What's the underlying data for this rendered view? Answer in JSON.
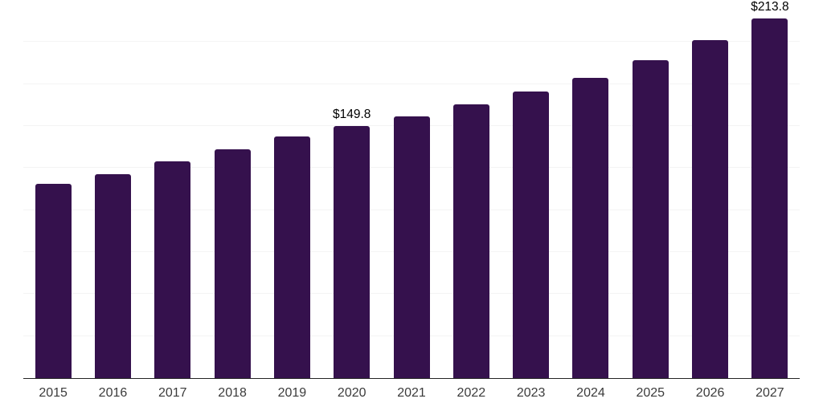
{
  "chart_data": {
    "type": "bar",
    "title": "",
    "xlabel": "",
    "ylabel": "",
    "categories": [
      "2015",
      "2016",
      "2017",
      "2018",
      "2019",
      "2020",
      "2021",
      "2022",
      "2023",
      "2024",
      "2025",
      "2026",
      "2027"
    ],
    "values": [
      115.4,
      121.5,
      128.9,
      136.1,
      143.8,
      149.8,
      155.9,
      162.8,
      170.4,
      178.7,
      189.3,
      201.1,
      213.8
    ],
    "data_labels": [
      "",
      "",
      "",
      "",
      "",
      "$149.8",
      "",
      "",
      "",
      "",
      "",
      "",
      "$213.8"
    ],
    "ylim": [
      0,
      225
    ],
    "grid_step": 25,
    "grid": true,
    "legend": false,
    "colors": {
      "bar": "#35114d",
      "axis": "#242424",
      "gridline": "#f4f4f4",
      "tick_label": "#3b3b3b",
      "data_label": "#000000",
      "background": "#ffffff"
    }
  }
}
